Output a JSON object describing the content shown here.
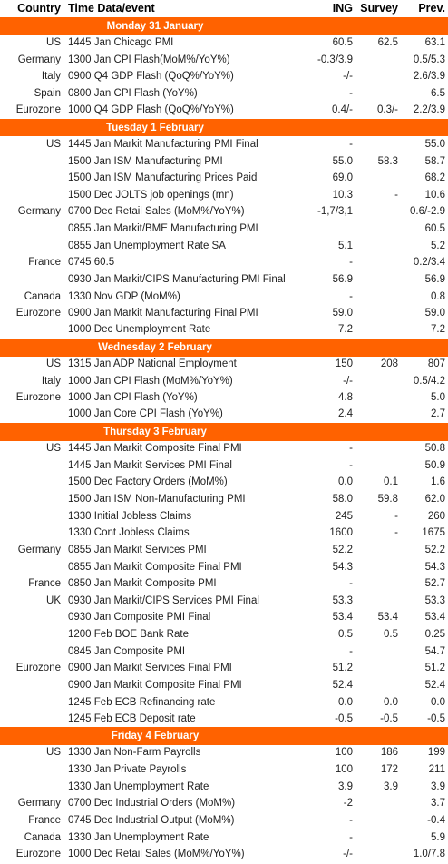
{
  "header": [
    "Country",
    "Time Data/event",
    "ING",
    "Survey",
    "Prev."
  ],
  "sections": [
    {
      "title": "Monday 31 January",
      "rows": [
        [
          "US",
          "1445 Jan Chicago PMI",
          "60.5",
          "62.5",
          "63.1"
        ],
        [
          "Germany",
          "1300 Jan CPI Flash(MoM%/YoY%)",
          "-0.3/3.9",
          null,
          "0.5/5.3"
        ],
        [
          "Italy",
          "0900 Q4 GDP Flash (QoQ%/YoY%)",
          "-/-",
          null,
          "2.6/3.9"
        ],
        [
          "Spain",
          "0800 Jan CPI Flash (YoY%)",
          "-",
          null,
          "6.5"
        ],
        [
          "Eurozone",
          "1000 Q4 GDP Flash (QoQ%/YoY%)",
          "0.4/-",
          "0.3/-",
          "2.2/3.9"
        ]
      ]
    },
    {
      "title": "Tuesday 1 February",
      "rows": [
        [
          "US",
          "1445 Jan Markit Manufacturing PMI Final",
          "-",
          null,
          "55.0"
        ],
        [
          null,
          "1500 Jan ISM Manufacturing PMI",
          "55.0",
          "58.3",
          "58.7"
        ],
        [
          null,
          "1500 Jan ISM Manufacturing Prices Paid",
          "69.0",
          null,
          "68.2"
        ],
        [
          null,
          "1500 Dec JOLTS job openings (mn)",
          "10.3",
          "-",
          "10.6"
        ],
        [
          "Germany",
          "0700 Dec Retail Sales (MoM%/YoY%)",
          "-1,7/3,1",
          null,
          "0.6/-2.9"
        ],
        [
          null,
          "0855 Jan Markit/BME Manufacturing PMI",
          null,
          null,
          "60.5"
        ],
        [
          null,
          "0855 Jan Unemployment Rate SA",
          "5.1",
          null,
          "5.2"
        ],
        [
          "France",
          "0745 60.5",
          "-",
          null,
          "0.2/3.4"
        ],
        [
          null,
          "0930 Jan Markit/CIPS Manufacturing PMI Final",
          "56.9",
          null,
          "56.9"
        ],
        [
          "Canada",
          "1330 Nov GDP (MoM%)",
          "-",
          null,
          "0.8"
        ],
        [
          "Eurozone",
          "0900 Jan Markit Manufacturing Final PMI",
          "59.0",
          null,
          "59.0"
        ],
        [
          null,
          "1000 Dec Unemployment Rate",
          "7.2",
          null,
          "7.2"
        ]
      ]
    },
    {
      "title": "Wednesday 2 February",
      "rows": [
        [
          "US",
          "1315 Jan ADP National Employment",
          "150",
          "208",
          "807"
        ],
        [
          "Italy",
          "1000 Jan CPI Flash (MoM%/YoY%)",
          "-/-",
          null,
          "0.5/4.2"
        ],
        [
          "Eurozone",
          "1000 Jan CPI Flash (YoY%)",
          "4.8",
          null,
          "5.0"
        ],
        [
          null,
          "1000 Jan Core CPI Flash (YoY%)",
          "2.4",
          null,
          "2.7"
        ]
      ]
    },
    {
      "title": "Thursday 3 February",
      "rows": [
        [
          "US",
          "1445 Jan Markit Composite Final PMI",
          "-",
          null,
          "50.8"
        ],
        [
          null,
          "1445 Jan Markit Services PMI Final",
          "-",
          null,
          "50.9"
        ],
        [
          null,
          "1500 Dec Factory Orders (MoM%)",
          "0.0",
          "0.1",
          "1.6"
        ],
        [
          null,
          "1500 Jan ISM Non-Manufacturing PMI",
          "58.0",
          "59.8",
          "62.0"
        ],
        [
          null,
          "1330 Initial Jobless Claims",
          "245",
          "-",
          "260"
        ],
        [
          null,
          "1330 Cont Jobless Claims",
          "1600",
          "-",
          "1675"
        ],
        [
          "Germany",
          "0855 Jan Markit Services PMI",
          "52.2",
          null,
          "52.2"
        ],
        [
          null,
          "0855 Jan Markit Composite Final PMI",
          "54.3",
          null,
          "54.3"
        ],
        [
          "France",
          "0850 Jan Markit Composite PMI",
          "-",
          null,
          "52.7"
        ],
        [
          "UK",
          "0930 Jan Markit/CIPS Services PMI Final",
          "53.3",
          null,
          "53.3"
        ],
        [
          null,
          "0930 Jan Composite PMI Final",
          "53.4",
          "53.4",
          "53.4"
        ],
        [
          null,
          "1200 Feb BOE Bank Rate",
          "0.5",
          "0.5",
          "0.25"
        ],
        [
          null,
          "0845 Jan Composite PMI",
          "-",
          null,
          "54.7"
        ],
        [
          "Eurozone",
          "0900 Jan Markit Services Final PMI",
          "51.2",
          null,
          "51.2"
        ],
        [
          null,
          "0900 Jan Markit Composite Final PMI",
          "52.4",
          null,
          "52.4"
        ],
        [
          null,
          "1245 Feb ECB Refinancing rate",
          "0.0",
          "0.0",
          "0.0"
        ],
        [
          null,
          "1245 Feb ECB Deposit rate",
          "-0.5",
          "-0.5",
          "-0.5"
        ]
      ]
    },
    {
      "title": "Friday 4 February",
      "rows": [
        [
          "US",
          "1330 Jan Non-Farm Payrolls",
          "100",
          "186",
          "199"
        ],
        [
          null,
          "1330 Jan Private Payrolls",
          "100",
          "172",
          "211"
        ],
        [
          null,
          "1330 Jan Unemployment Rate",
          "3.9",
          "3.9",
          "3.9"
        ],
        [
          "Germany",
          "0700 Dec Industrial Orders (MoM%)",
          "-2",
          null,
          "3.7"
        ],
        [
          "France",
          "0745 Dec Industrial Output (MoM%)",
          "-",
          null,
          "-0.4"
        ],
        [
          "Canada",
          "1330 Jan Unemployment Rate",
          "-",
          null,
          "5.9"
        ],
        [
          "Eurozone",
          "1000 Dec Retail Sales (MoM%/YoY%)",
          "-/-",
          null,
          "1.0/7.8"
        ]
      ]
    }
  ]
}
